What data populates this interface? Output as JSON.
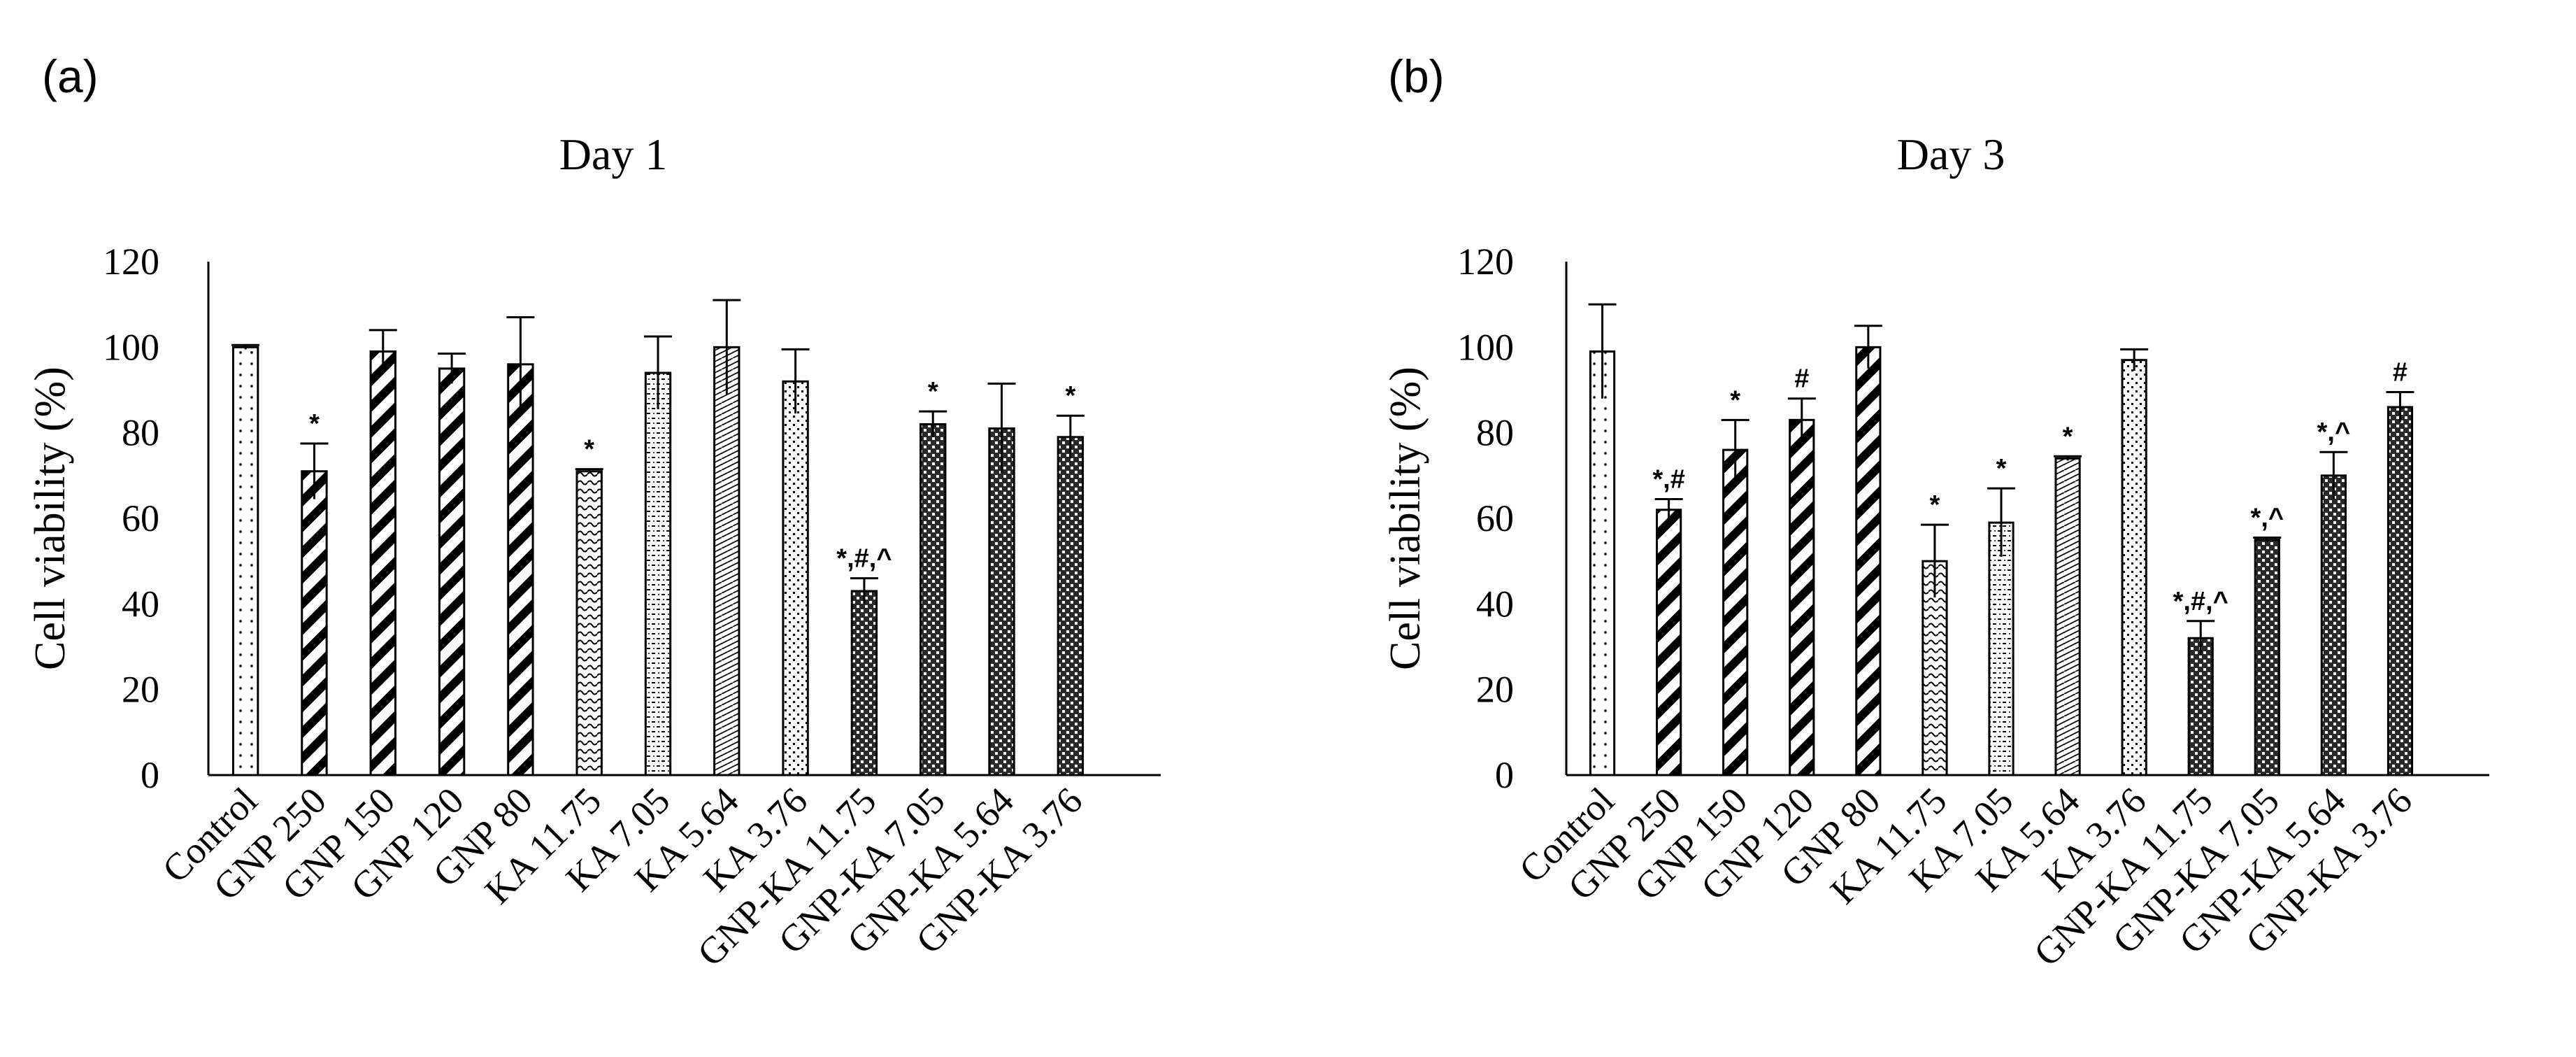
{
  "chart_data": [
    {
      "panel_label": "(a)",
      "type": "bar",
      "title": "Day 1",
      "xlabel": "",
      "ylabel": "Cell viability (%)",
      "ylim": [
        0,
        120
      ],
      "yticks": [
        "0",
        "20",
        "40",
        "60",
        "80",
        "100",
        "120"
      ],
      "grid": false,
      "categories": [
        "Control",
        "GNP 250",
        "GNP 150",
        "GNP 120",
        "GNP 80",
        "KA 11.75",
        "KA 7.05",
        "KA 5.64",
        "KA 3.76",
        "GNP-KA 11.75",
        "GNP-KA 7.05",
        "GNP-KA 5.64",
        "GNP-KA 3.76"
      ],
      "values": [
        100,
        71,
        99,
        95,
        96,
        71,
        94,
        100,
        92,
        43,
        82,
        81,
        79
      ],
      "errors": [
        0.5,
        6.5,
        5,
        3.5,
        11,
        0.5,
        8.5,
        11,
        7.5,
        3,
        3,
        10.5,
        5
      ],
      "patterns": [
        "dots",
        "diag",
        "diag",
        "diag",
        "diag",
        "wave",
        "dash",
        "brick",
        "check",
        "dense",
        "dense",
        "dense",
        "dense"
      ],
      "annotations": [
        "",
        "*",
        "",
        "",
        "",
        "*",
        "",
        "",
        "",
        "*,#,^",
        "*",
        "",
        "*"
      ]
    },
    {
      "panel_label": "(b)",
      "type": "bar",
      "title": "Day 3",
      "xlabel": "",
      "ylabel": "Cell viability (%)",
      "ylim": [
        0,
        120
      ],
      "yticks": [
        "0",
        "20",
        "40",
        "60",
        "80",
        "100",
        "120"
      ],
      "grid": false,
      "categories": [
        "Control",
        "GNP 250",
        "GNP 150",
        "GNP 120",
        "GNP 80",
        "KA 11.75",
        "KA 7.05",
        "KA 5.64",
        "KA 3.76",
        "GNP-KA 11.75",
        "GNP-KA 7.05",
        "GNP-KA 5.64",
        "GNP-KA 3.76"
      ],
      "values": [
        99,
        62,
        76,
        83,
        100,
        50,
        59,
        74,
        97,
        32,
        55,
        70,
        86
      ],
      "errors": [
        11,
        2.5,
        7,
        5,
        5,
        8.5,
        8,
        0.5,
        2.5,
        4,
        0.5,
        5.5,
        3.5
      ],
      "patterns": [
        "dots",
        "diag",
        "diag",
        "diag",
        "diag",
        "wave",
        "dash",
        "brick",
        "check",
        "dense",
        "dense",
        "dense",
        "dense"
      ],
      "annotations": [
        "",
        "*,#",
        "*",
        "#",
        "",
        "*",
        "*",
        "*",
        "",
        "*,#,^",
        "*,^",
        "*,^",
        "#"
      ]
    }
  ]
}
